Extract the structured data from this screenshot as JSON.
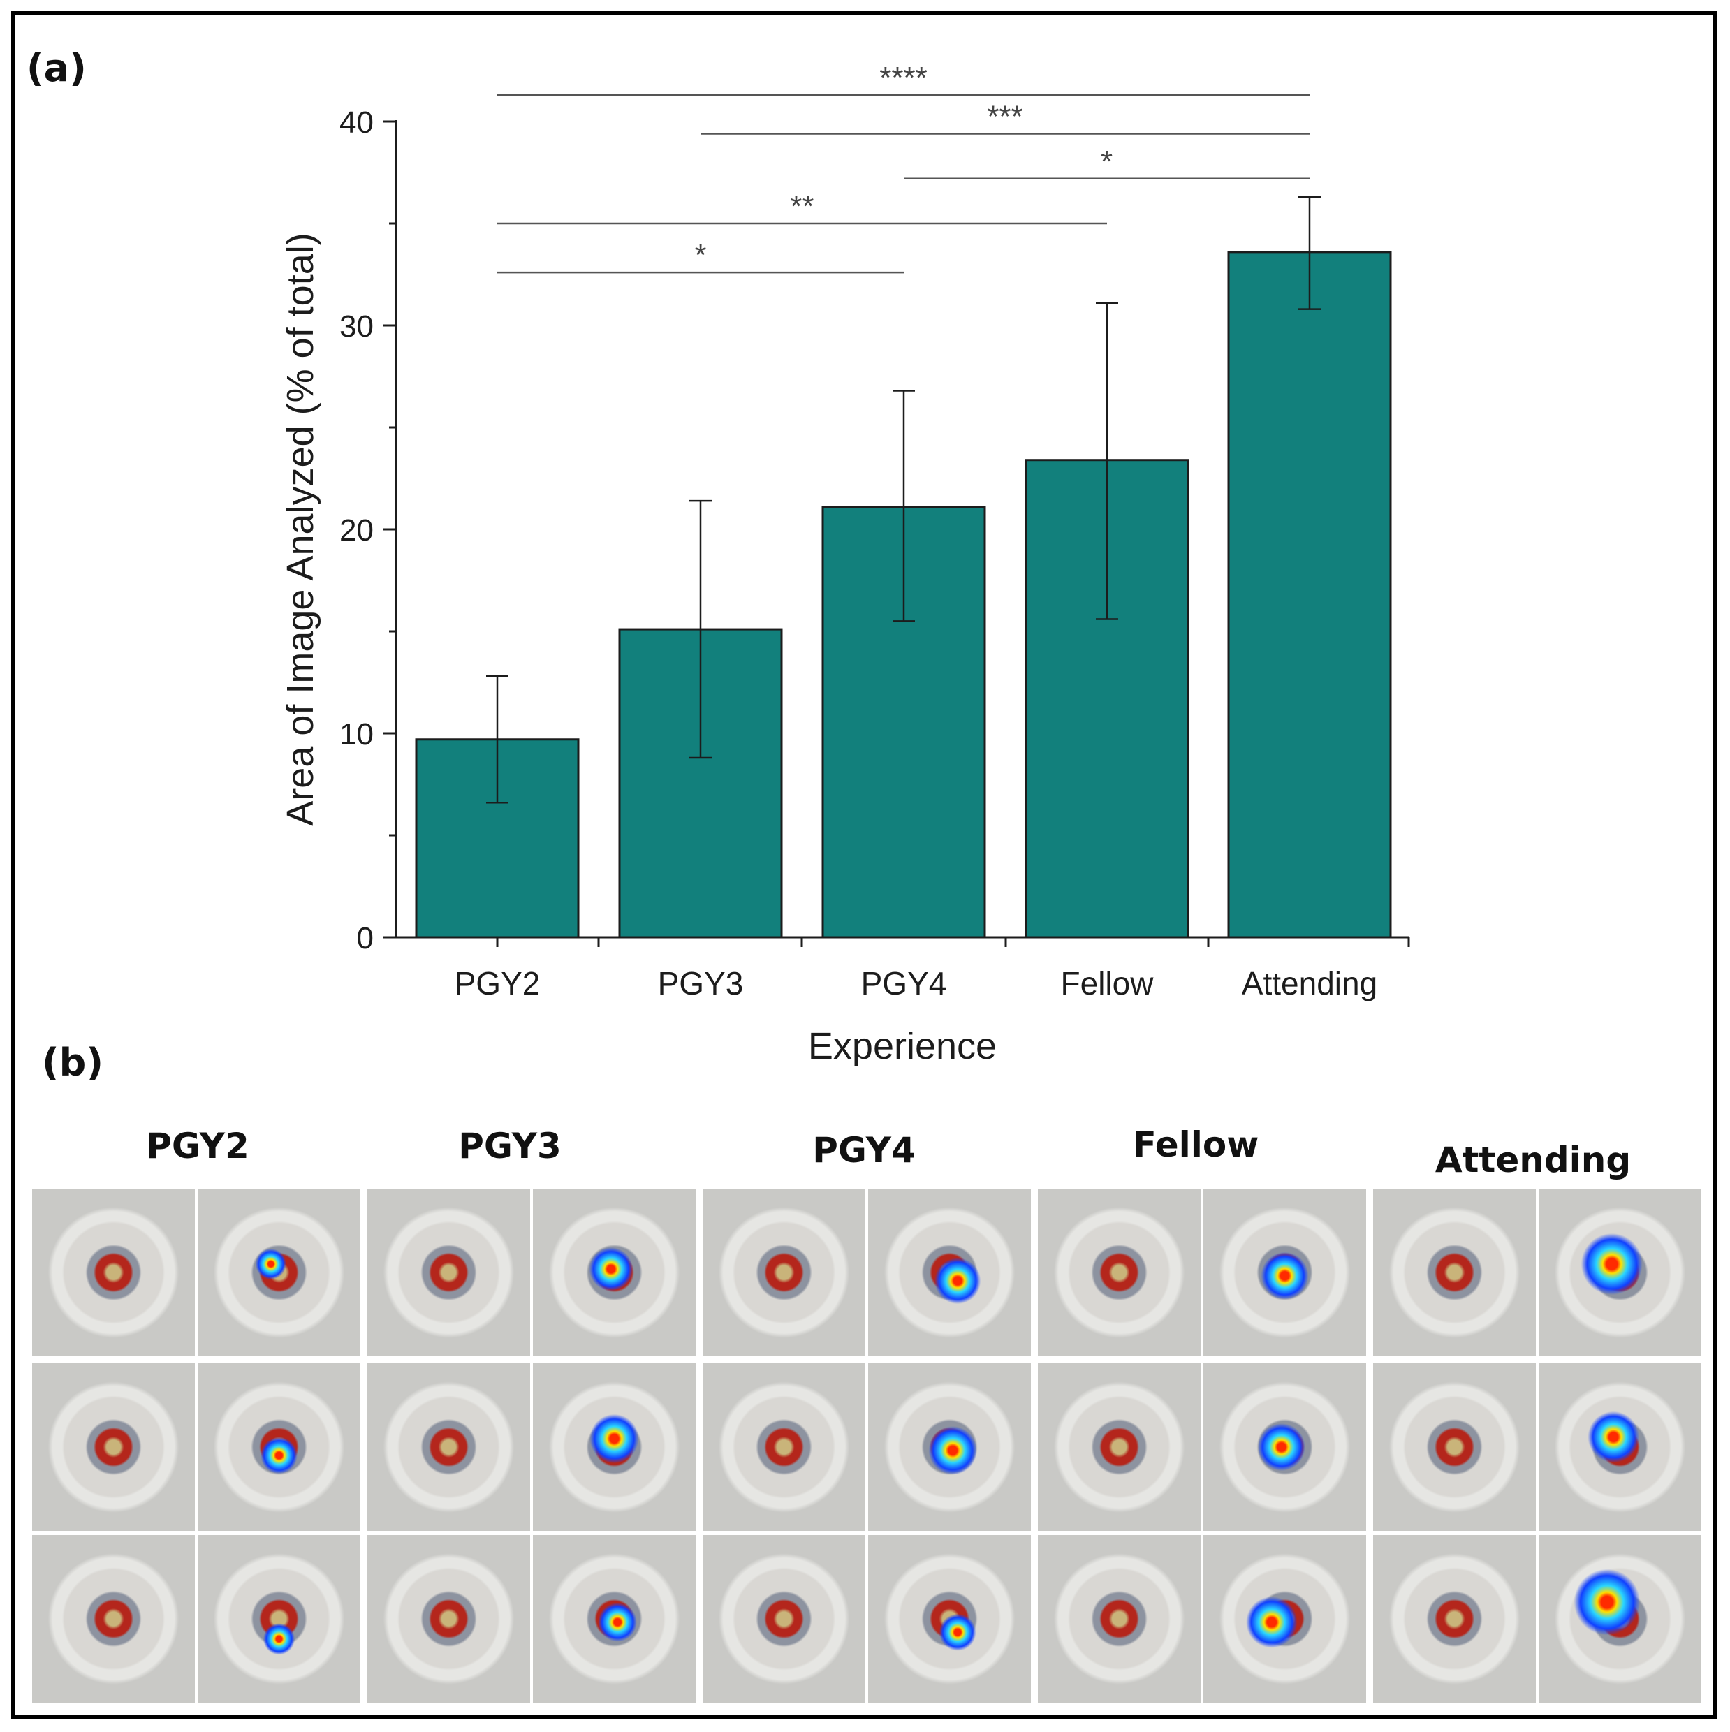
{
  "panel_a_label": "(a)",
  "panel_b_label": "(b)",
  "colors": {
    "bar": "#12807c",
    "bar_stroke": "#1c1c1c",
    "axis": "#1c1c1c",
    "bracket": "#555555",
    "star": "#444444",
    "tray": "#c9c9c6",
    "tray_inner": "#e6e6e3",
    "eye_red": "#b4261c",
    "lens": "#c9b47a",
    "ring": "#8d93a0"
  },
  "chart_data": {
    "type": "bar",
    "title": "",
    "xlabel": "Experience",
    "ylabel": "Area of Image Analyzed (% of total)",
    "categories": [
      "PGY2",
      "PGY3",
      "PGY4",
      "Fellow",
      "Attending"
    ],
    "values": [
      9.7,
      15.1,
      21.1,
      23.4,
      33.6
    ],
    "error_low": [
      6.6,
      8.8,
      15.5,
      15.6,
      30.8
    ],
    "error_high": [
      12.8,
      21.4,
      26.8,
      31.1,
      36.3
    ],
    "ylim": [
      0,
      40
    ],
    "yticks": [
      "0",
      "10",
      "20",
      "30",
      "40"
    ],
    "grid": false,
    "legend": "none",
    "significance": [
      {
        "from": "PGY2",
        "to": "PGY4",
        "label": "*",
        "y": 32.6
      },
      {
        "from": "PGY2",
        "to": "Fellow",
        "label": "**",
        "y": 35.0
      },
      {
        "from": "PGY4",
        "to": "Attending",
        "label": "*",
        "y": 37.2
      },
      {
        "from": "PGY3",
        "to": "Attending",
        "label": "***",
        "y": 39.4
      },
      {
        "from": "PGY2",
        "to": "Attending",
        "label": "****",
        "y": 41.3
      }
    ]
  },
  "panel_b": {
    "columns": [
      "PGY2",
      "PGY3",
      "PGY4",
      "Fellow",
      "Attending"
    ]
  }
}
